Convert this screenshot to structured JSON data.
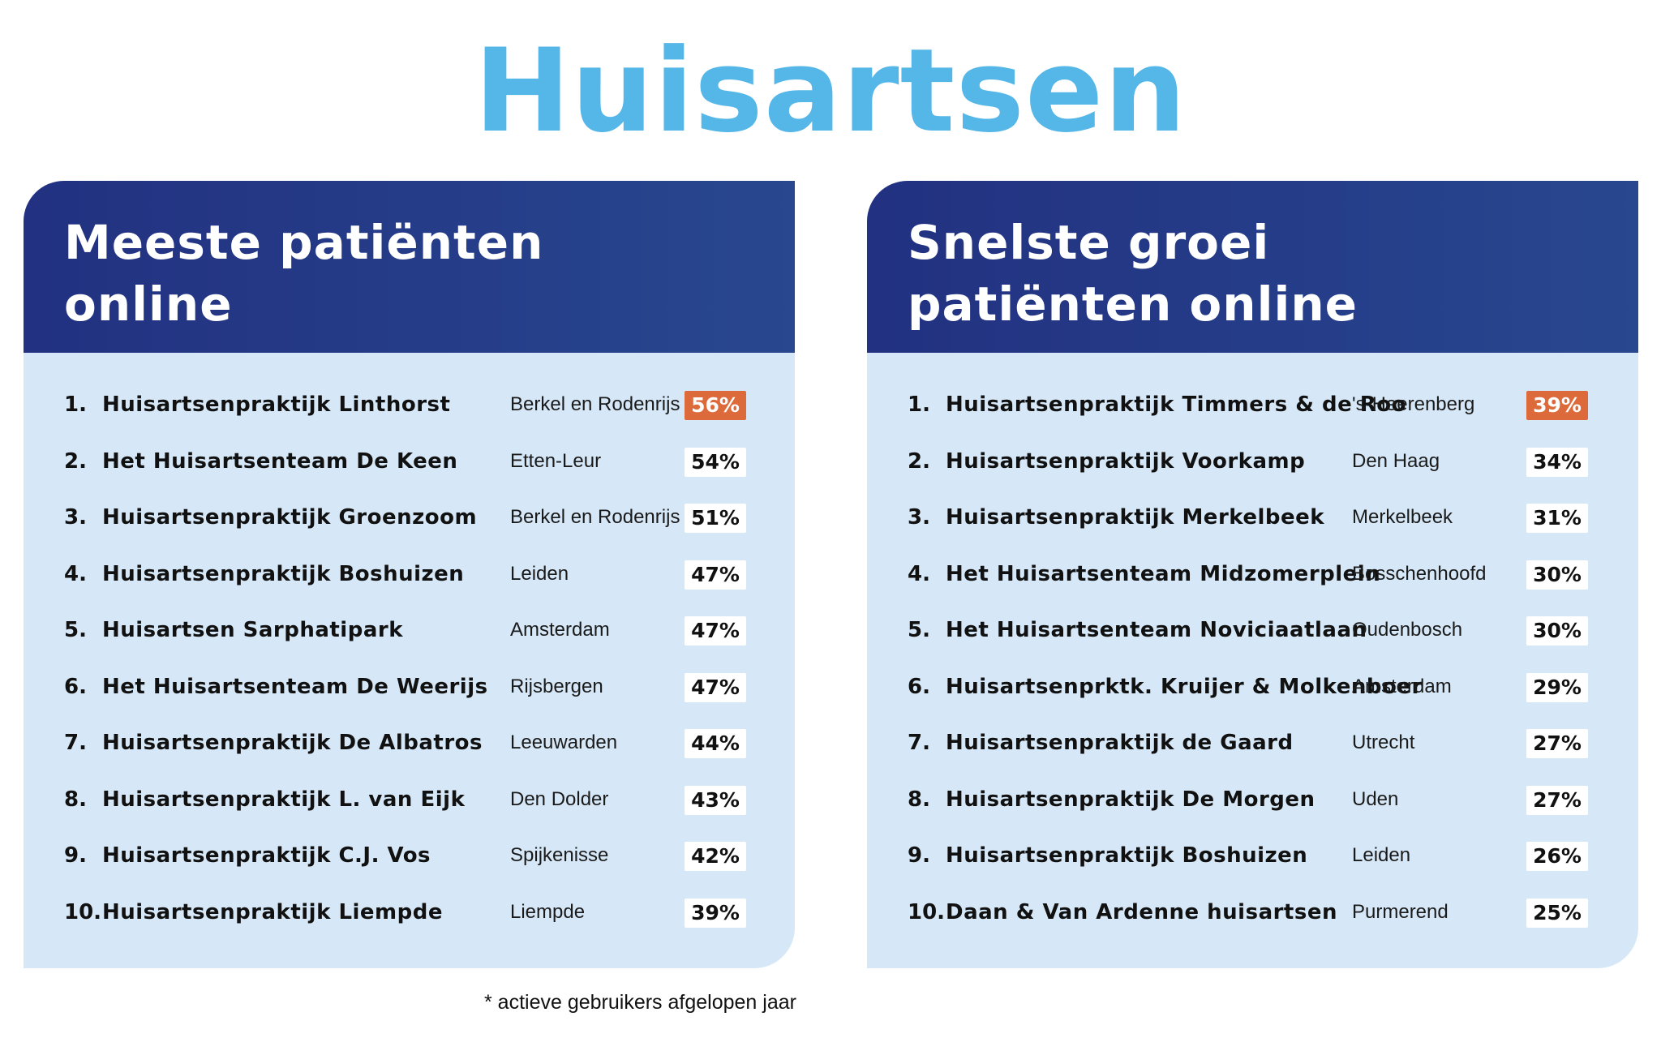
{
  "title": "Huisartsen",
  "accent_color": "#55b6e8",
  "header_color": "#223181",
  "highlight_color": "#dd6a3a",
  "panels": [
    {
      "title_line1": "Meeste patiënten",
      "title_line2": "online",
      "rows": [
        {
          "rank": "1.",
          "name": "Huisartsenpraktijk Linthorst",
          "city": "Berkel en Rodenrijs",
          "pct": "56%",
          "highlight": true
        },
        {
          "rank": "2.",
          "name": "Het Huisartsenteam De Keen",
          "city": "Etten-Leur",
          "pct": "54%"
        },
        {
          "rank": "3.",
          "name": "Huisartsenpraktijk Groenzoom",
          "city": "Berkel en Rodenrijs",
          "pct": "51%"
        },
        {
          "rank": "4.",
          "name": "Huisartsenpraktijk Boshuizen",
          "city": "Leiden",
          "pct": "47%"
        },
        {
          "rank": "5.",
          "name": "Huisartsen Sarphatipark",
          "city": "Amsterdam",
          "pct": "47%"
        },
        {
          "rank": "6.",
          "name": "Het Huisartsenteam De Weerijs",
          "city": "Rijsbergen",
          "pct": "47%"
        },
        {
          "rank": "7.",
          "name": "Huisartsenpraktijk De Albatros",
          "city": "Leeuwarden",
          "pct": "44%"
        },
        {
          "rank": "8.",
          "name": "Huisartsenpraktijk L. van Eijk",
          "city": "Den Dolder",
          "pct": "43%"
        },
        {
          "rank": "9.",
          "name": "Huisartsenpraktijk C.J. Vos",
          "city": "Spijkenisse",
          "pct": "42%"
        },
        {
          "rank": "10.",
          "name": "Huisartsenpraktijk Liempde",
          "city": "Liempde",
          "pct": "39%"
        }
      ]
    },
    {
      "title_line1": "Snelste groei",
      "title_line2": "patiënten online",
      "rows": [
        {
          "rank": "1.",
          "name": "Huisartsenpraktijk Timmers & de Roo",
          "city": "'s-Heerenberg",
          "pct": "39%",
          "highlight": true
        },
        {
          "rank": "2.",
          "name": "Huisartsenpraktijk Voorkamp",
          "city": "Den Haag",
          "pct": "34%"
        },
        {
          "rank": "3.",
          "name": "Huisartsenpraktijk Merkelbeek",
          "city": "Merkelbeek",
          "pct": "31%"
        },
        {
          "rank": "4.",
          "name": "Het Huisartsenteam Midzomerplein",
          "city": "Bosschenhoofd",
          "pct": "30%"
        },
        {
          "rank": "5.",
          "name": "Het Huisartsenteam Noviciaatlaan",
          "city": "Oudenbosch",
          "pct": "30%"
        },
        {
          "rank": "6.",
          "name": "Huisartsenprktk. Kruijer & Molkenboer",
          "city": "Amsterdam",
          "pct": "29%"
        },
        {
          "rank": "7.",
          "name": "Huisartsenpraktijk de Gaard",
          "city": "Utrecht",
          "pct": "27%"
        },
        {
          "rank": "8.",
          "name": "Huisartsenpraktijk De Morgen",
          "city": "Uden",
          "pct": "27%"
        },
        {
          "rank": "9.",
          "name": "Huisartsenpraktijk Boshuizen",
          "city": "Leiden",
          "pct": "26%"
        },
        {
          "rank": "10.",
          "name": "Daan & Van Ardenne huisartsen",
          "city": "Purmerend",
          "pct": "25%"
        }
      ]
    }
  ],
  "footnote": "* actieve gebruikers afgelopen jaar"
}
